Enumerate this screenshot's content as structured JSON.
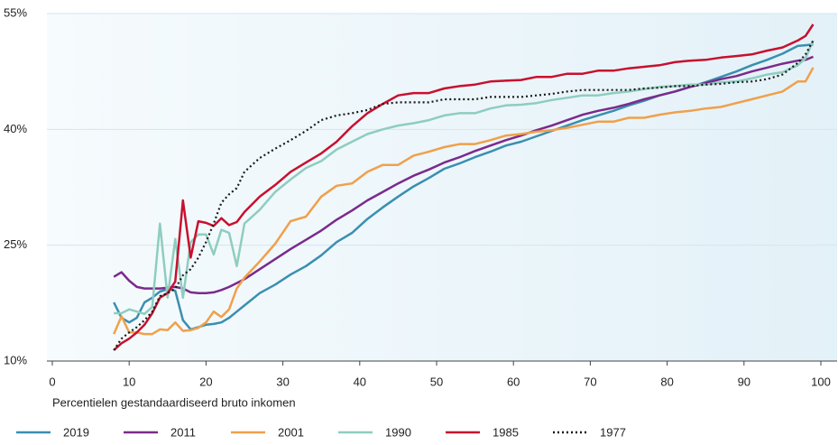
{
  "chart_data": {
    "type": "line",
    "x_label": "Percentielen gestandaardiseerd bruto inkomen",
    "x": [
      8,
      9,
      10,
      11,
      12,
      13,
      14,
      15,
      16,
      17,
      18,
      19,
      20,
      21,
      22,
      23,
      24,
      25,
      27,
      29,
      31,
      33,
      35,
      37,
      39,
      41,
      43,
      45,
      47,
      49,
      51,
      53,
      55,
      57,
      59,
      61,
      63,
      65,
      67,
      69,
      71,
      73,
      75,
      77,
      79,
      81,
      83,
      85,
      87,
      89,
      91,
      93,
      95,
      97,
      98,
      99
    ],
    "xlim": [
      0,
      100
    ],
    "xticks": [
      0,
      10,
      20,
      30,
      40,
      50,
      60,
      70,
      80,
      90,
      100
    ],
    "ylim": [
      10,
      55
    ],
    "yticks": [
      {
        "value": 10,
        "label": "10%"
      },
      {
        "value": 25,
        "label": "25%"
      },
      {
        "value": 40,
        "label": "40%"
      },
      {
        "value": 55,
        "label": "55%"
      }
    ],
    "grid": true,
    "legend": "bottom",
    "series": [
      {
        "name": "2019",
        "color": "#3a8fb0",
        "linestyle": "solid",
        "values": [
          17.6,
          15.6,
          15.0,
          15.6,
          17.6,
          18.2,
          19.0,
          19.3,
          19.1,
          15.3,
          14.1,
          14.4,
          14.7,
          14.8,
          15.0,
          15.6,
          16.4,
          17.2,
          18.8,
          19.9,
          21.2,
          22.3,
          23.7,
          25.4,
          26.6,
          28.4,
          29.9,
          31.3,
          32.6,
          33.7,
          34.9,
          35.6,
          36.4,
          37.1,
          37.9,
          38.4,
          39.1,
          39.8,
          40.5,
          41.2,
          41.8,
          42.4,
          43.1,
          43.7,
          44.4,
          44.9,
          45.5,
          46.1,
          46.8,
          47.5,
          48.3,
          49.0,
          49.8,
          50.8,
          50.9,
          51.0
        ]
      },
      {
        "name": "2011",
        "color": "#7b2a8c",
        "linestyle": "solid",
        "values": [
          20.9,
          21.5,
          20.4,
          19.6,
          19.4,
          19.4,
          19.4,
          19.5,
          19.6,
          19.4,
          18.9,
          18.8,
          18.8,
          18.9,
          19.2,
          19.6,
          20.1,
          20.6,
          21.9,
          23.2,
          24.5,
          25.7,
          26.9,
          28.3,
          29.5,
          30.8,
          31.9,
          33.0,
          34.0,
          34.8,
          35.7,
          36.4,
          37.2,
          37.9,
          38.6,
          39.2,
          39.9,
          40.5,
          41.2,
          41.9,
          42.4,
          42.8,
          43.3,
          43.9,
          44.4,
          44.9,
          45.5,
          46.0,
          46.5,
          46.9,
          47.5,
          48.0,
          48.5,
          48.9,
          49.0,
          49.4
        ]
      },
      {
        "name": "2001",
        "color": "#f0a04b",
        "linestyle": "solid",
        "values": [
          13.5,
          15.8,
          13.7,
          13.7,
          13.5,
          13.5,
          14.1,
          14.0,
          15.0,
          13.9,
          14.0,
          14.3,
          15.0,
          16.4,
          15.7,
          16.7,
          19.4,
          20.8,
          22.9,
          25.2,
          28.1,
          28.7,
          31.3,
          32.7,
          33.0,
          34.5,
          35.4,
          35.4,
          36.6,
          37.1,
          37.7,
          38.1,
          38.1,
          38.6,
          39.2,
          39.4,
          39.7,
          39.9,
          40.2,
          40.6,
          41.0,
          41.0,
          41.5,
          41.5,
          41.9,
          42.2,
          42.4,
          42.7,
          42.9,
          43.4,
          43.9,
          44.4,
          44.9,
          46.2,
          46.2,
          48.0
        ]
      },
      {
        "name": "1990",
        "color": "#8ecdc0",
        "linestyle": "solid",
        "values": [
          16.2,
          16.2,
          16.7,
          16.4,
          16.1,
          17.0,
          27.8,
          18.2,
          25.8,
          18.2,
          25.4,
          26.4,
          26.4,
          23.8,
          27.0,
          26.6,
          22.3,
          27.8,
          29.6,
          31.9,
          33.5,
          35.0,
          35.9,
          37.4,
          38.4,
          39.4,
          40.0,
          40.5,
          40.8,
          41.2,
          41.8,
          42.1,
          42.1,
          42.7,
          43.1,
          43.2,
          43.4,
          43.8,
          44.1,
          44.4,
          44.4,
          44.7,
          44.9,
          45.2,
          45.5,
          45.6,
          45.8,
          45.8,
          46.1,
          46.2,
          46.6,
          47.1,
          47.4,
          48.3,
          49.2,
          51.5
        ]
      },
      {
        "name": "1985",
        "color": "#c8102e",
        "linestyle": "solid",
        "values": [
          11.4,
          12.3,
          12.9,
          13.7,
          14.7,
          16.2,
          18.2,
          18.8,
          20.3,
          30.8,
          23.4,
          28.1,
          27.9,
          27.5,
          28.5,
          27.6,
          28.0,
          29.3,
          31.3,
          32.8,
          34.5,
          35.7,
          36.9,
          38.4,
          40.4,
          42.1,
          43.3,
          44.4,
          44.7,
          44.7,
          45.3,
          45.6,
          45.8,
          46.2,
          46.3,
          46.4,
          46.8,
          46.8,
          47.2,
          47.2,
          47.6,
          47.6,
          47.9,
          48.1,
          48.3,
          48.7,
          48.9,
          49.0,
          49.3,
          49.5,
          49.7,
          50.2,
          50.6,
          51.5,
          52.1,
          53.6
        ]
      },
      {
        "name": "1977",
        "color": "#1a1a1a",
        "linestyle": "dotted",
        "values": [
          11.4,
          12.9,
          13.7,
          14.4,
          15.3,
          16.4,
          18.4,
          18.8,
          19.4,
          21.1,
          21.9,
          23.4,
          25.4,
          27.8,
          30.5,
          31.6,
          32.4,
          34.5,
          36.3,
          37.5,
          38.6,
          39.8,
          41.2,
          41.8,
          42.1,
          42.5,
          43.3,
          43.5,
          43.5,
          43.5,
          43.9,
          43.9,
          43.9,
          44.2,
          44.2,
          44.2,
          44.4,
          44.6,
          44.9,
          45.1,
          45.1,
          45.1,
          45.1,
          45.3,
          45.4,
          45.6,
          45.6,
          45.8,
          45.9,
          46.1,
          46.2,
          46.5,
          47.1,
          48.6,
          49.7,
          51.5
        ]
      }
    ]
  }
}
